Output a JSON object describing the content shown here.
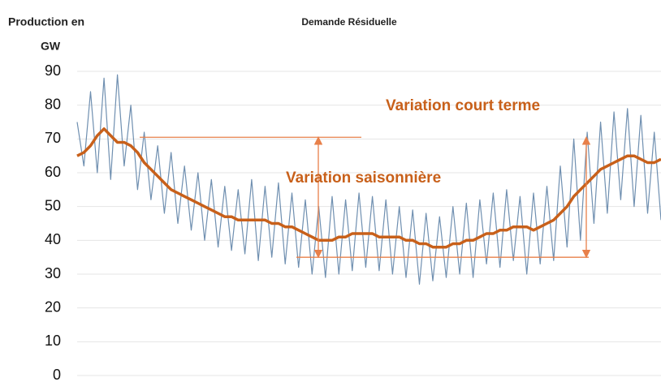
{
  "chart_data": {
    "type": "line",
    "title": "Demande Résiduelle",
    "ylabel": [
      "Production  en",
      "GW"
    ],
    "categories": [
      null,
      null,
      null,
      null,
      null,
      null,
      null,
      null,
      null,
      null,
      null,
      null,
      null,
      null,
      null,
      null,
      null,
      null,
      null,
      null,
      null,
      null,
      null,
      null,
      null,
      null,
      null,
      null,
      null,
      null,
      null,
      null,
      null,
      null,
      null,
      null,
      null,
      null,
      null,
      null,
      null,
      null,
      null,
      null,
      null,
      null,
      null,
      null,
      null,
      null,
      null,
      null,
      null,
      null,
      null,
      null,
      null,
      null,
      null,
      null,
      null,
      null,
      null,
      null,
      null,
      null,
      null,
      null,
      null,
      null,
      null,
      null,
      null,
      null,
      null,
      null,
      null,
      null,
      null,
      null,
      null,
      null,
      null,
      null,
      null,
      null,
      null,
      null
    ],
    "series": [
      {
        "name": null,
        "color": "#6f8fb0",
        "width": 1.2,
        "values": [
          75,
          62,
          84,
          60,
          88,
          58,
          89,
          62,
          80,
          55,
          72,
          52,
          68,
          48,
          66,
          45,
          62,
          43,
          60,
          40,
          58,
          38,
          56,
          37,
          55,
          36,
          58,
          34,
          56,
          35,
          57,
          33,
          54,
          32,
          52,
          30,
          50,
          29,
          53,
          30,
          52,
          31,
          54,
          32,
          53,
          31,
          52,
          30,
          50,
          29,
          49,
          27,
          48,
          28,
          47,
          29,
          50,
          30,
          51,
          29,
          52,
          33,
          54,
          32,
          55,
          34,
          53,
          30,
          54,
          33,
          56,
          34,
          62,
          38,
          70,
          40,
          72,
          45,
          75,
          48,
          78,
          52,
          79,
          50,
          77,
          48,
          72,
          46
        ]
      },
      {
        "name": null,
        "color": "#c8601a",
        "width": 3.5,
        "values": [
          65,
          66,
          68,
          71,
          73,
          71,
          69,
          69,
          68,
          66,
          63,
          61,
          59,
          57,
          55,
          54,
          53,
          52,
          51,
          50,
          49,
          48,
          47,
          47,
          46,
          46,
          46,
          46,
          46,
          45,
          45,
          44,
          44,
          43,
          42,
          41,
          40,
          40,
          40,
          41,
          41,
          42,
          42,
          42,
          42,
          41,
          41,
          41,
          41,
          40,
          40,
          39,
          39,
          38,
          38,
          38,
          39,
          39,
          40,
          40,
          41,
          42,
          42,
          43,
          43,
          44,
          44,
          44,
          43,
          44,
          45,
          46,
          48,
          50,
          53,
          55,
          57,
          59,
          61,
          62,
          63,
          64,
          65,
          65,
          64,
          63,
          63,
          64
        ]
      }
    ],
    "ylim": [
      0,
      90
    ],
    "yticks": [
      0,
      10,
      20,
      30,
      40,
      50,
      60,
      70,
      80,
      90
    ],
    "grid": true,
    "reference_lines": [
      {
        "value": 70.5,
        "color": "#e8804a"
      },
      {
        "value": 35,
        "color": "#e8804a"
      }
    ],
    "annotations": [
      {
        "text": "Variation court terme",
        "color": "#c8601a"
      },
      {
        "text": "Variation saisonnière",
        "color": "#c8601a"
      }
    ]
  }
}
